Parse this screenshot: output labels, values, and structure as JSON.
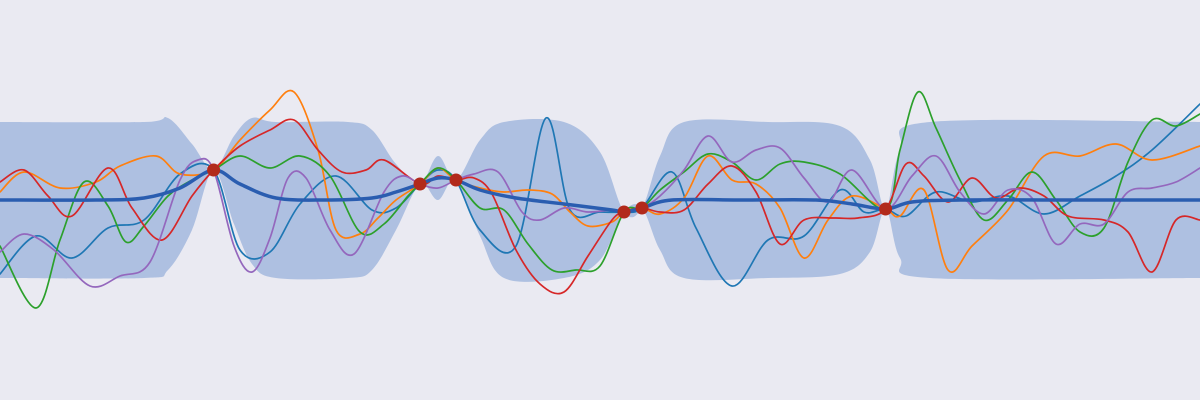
{
  "chart_data": {
    "type": "line",
    "title": "",
    "xlabel": "",
    "ylabel": "",
    "grid": false,
    "xlim": [
      0,
      100
    ],
    "ylim": [
      -10,
      10
    ],
    "background": "#eaeaf2",
    "band_color": "#aec0e1",
    "mean_color": "#2a5db0",
    "point_color": "#b22a1b",
    "observations": {
      "x": [
        17.8,
        35.0,
        38.0,
        52.0,
        53.5,
        73.8
      ],
      "y": [
        1.5,
        0.8,
        1.0,
        -0.6,
        -0.4,
        -0.45
      ]
    },
    "mean": {
      "x": [
        0,
        8,
        12,
        15,
        17.8,
        20,
        23,
        27,
        31,
        33,
        35,
        36.5,
        38,
        40,
        43,
        47,
        51,
        52,
        53.5,
        56,
        62,
        68,
        71,
        73.8,
        76,
        80,
        88,
        100
      ],
      "y": [
        0.0,
        0.0,
        0.1,
        0.6,
        1.5,
        0.8,
        0.1,
        0.0,
        0.1,
        0.4,
        0.8,
        1.1,
        1.0,
        0.5,
        0.1,
        -0.2,
        -0.5,
        -0.6,
        -0.4,
        0.0,
        0.0,
        0.0,
        -0.2,
        -0.45,
        -0.1,
        0.0,
        0.0,
        0.0
      ]
    },
    "confidence_band": {
      "x": [
        0,
        12,
        14,
        16,
        17.8,
        19.5,
        21,
        23,
        29,
        31,
        33,
        35,
        36.5,
        38,
        40,
        42,
        47,
        50,
        52,
        53.5,
        55,
        57,
        64,
        70,
        72.5,
        73.8,
        75,
        77.5,
        100
      ],
      "upper": [
        3.9,
        3.9,
        4.1,
        2.8,
        1.5,
        3.2,
        4.1,
        3.9,
        3.9,
        3.5,
        1.8,
        0.8,
        2.2,
        1.0,
        3.0,
        3.9,
        3.9,
        2.4,
        -0.6,
        -0.4,
        2.2,
        3.9,
        3.9,
        3.7,
        2.0,
        -0.45,
        2.5,
        3.9,
        3.9
      ],
      "lower": [
        -3.9,
        -3.9,
        -3.5,
        -1.5,
        1.5,
        -1.2,
        -3.2,
        -3.9,
        -3.9,
        -3.5,
        -1.5,
        0.8,
        0.0,
        1.0,
        -1.8,
        -3.9,
        -3.9,
        -3.0,
        -0.6,
        -0.4,
        -2.5,
        -3.9,
        -3.9,
        -3.7,
        -2.6,
        -0.45,
        -2.9,
        -3.9,
        -3.9
      ]
    },
    "series": [
      {
        "color": "#1f77b4",
        "x": [
          0,
          3,
          6,
          9,
          12,
          15,
          17.8,
          20,
          22.5,
          25,
          28,
          31,
          33,
          35,
          36.5,
          38,
          40,
          43,
          45.5,
          47.5,
          50,
          52,
          53.5,
          56,
          58,
          61,
          64,
          67,
          70,
          72,
          73.8,
          75.5,
          78,
          81,
          84,
          87,
          90,
          93,
          96,
          100
        ],
        "y": [
          -3.7,
          -1.8,
          -2.9,
          -1.4,
          -1.0,
          1.3,
          1.5,
          -2.5,
          -2.6,
          -0.2,
          1.2,
          -0.5,
          -0.4,
          0.8,
          1.5,
          1.0,
          -1.5,
          -2.3,
          4.1,
          -0.5,
          -0.6,
          -0.6,
          -0.4,
          1.4,
          -1.4,
          -4.3,
          -2.0,
          -1.8,
          0.5,
          -0.6,
          -0.45,
          -0.8,
          0.4,
          -0.1,
          0.2,
          -0.7,
          0.2,
          1.2,
          2.5,
          4.8
        ]
      },
      {
        "color": "#ff7f0e",
        "x": [
          0,
          2,
          5,
          8,
          10,
          13,
          15,
          17.8,
          20,
          22.5,
          24.5,
          26.5,
          28,
          30,
          31.5,
          33,
          35,
          36.5,
          38,
          40,
          42,
          44,
          46,
          47.5,
          49,
          51,
          52,
          53.5,
          55,
          57,
          59,
          61,
          63,
          65,
          67,
          69,
          71,
          73.8,
          75,
          77,
          79,
          81,
          84,
          87,
          90,
          93,
          96,
          100
        ],
        "y": [
          0.4,
          1.4,
          0.6,
          0.9,
          1.7,
          2.2,
          1.3,
          1.5,
          3.0,
          4.5,
          5.4,
          2.5,
          -1.5,
          -1.7,
          -0.9,
          0.0,
          0.8,
          1.6,
          1.0,
          0.6,
          0.4,
          0.5,
          0.3,
          -0.6,
          -1.3,
          -1.1,
          -0.6,
          -0.4,
          -0.7,
          0.1,
          2.2,
          1.0,
          0.8,
          -0.4,
          -2.9,
          -1.0,
          0.2,
          -0.45,
          -0.8,
          0.5,
          -3.5,
          -2.3,
          -0.5,
          2.2,
          2.2,
          2.8,
          2.0,
          2.7
        ]
      },
      {
        "color": "#2ca02c",
        "x": [
          0,
          3,
          5,
          7,
          9,
          10.5,
          12,
          14,
          16,
          17.8,
          20,
          22.5,
          25,
          27.5,
          30,
          32,
          34,
          35,
          36.5,
          38,
          40,
          42,
          44,
          46,
          48,
          50,
          52,
          53.5,
          55,
          57,
          59,
          61,
          63,
          65,
          67,
          70,
          73.8,
          75,
          76.5,
          78,
          80,
          82,
          84,
          86,
          88,
          90,
          92,
          94,
          96,
          98,
          100
        ],
        "y": [
          -2.3,
          -5.4,
          -2.0,
          0.9,
          -0.3,
          -2.1,
          -1.3,
          0.2,
          1.0,
          1.5,
          2.2,
          1.6,
          2.2,
          1.2,
          -1.6,
          -1.2,
          0.2,
          0.8,
          1.6,
          1.0,
          -0.4,
          -0.5,
          -2.2,
          -3.5,
          -3.5,
          -3.3,
          -0.6,
          -0.4,
          0.5,
          1.4,
          2.3,
          1.9,
          1.0,
          1.8,
          1.9,
          1.3,
          -0.45,
          2.5,
          5.4,
          3.6,
          1.0,
          -1.0,
          0.0,
          1.4,
          0.0,
          -1.6,
          -1.4,
          1.9,
          4.0,
          3.7,
          4.3
        ]
      },
      {
        "color": "#d62728",
        "x": [
          0,
          2,
          4,
          6,
          9,
          11,
          13.5,
          16,
          17.8,
          20,
          22.5,
          24.5,
          26.5,
          28.5,
          30.5,
          32,
          35,
          36.5,
          38,
          39.5,
          41,
          43,
          45,
          47,
          49,
          51,
          52,
          53.5,
          55,
          57,
          59,
          61,
          63,
          65,
          67,
          69.5,
          71.5,
          73.8,
          75.5,
          77,
          79,
          81,
          83,
          85,
          87,
          89,
          92,
          94,
          96,
          98,
          100
        ],
        "y": [
          0.9,
          1.5,
          0.2,
          -0.8,
          1.6,
          -0.4,
          -2.0,
          0.2,
          1.5,
          2.7,
          3.5,
          4.0,
          2.5,
          1.4,
          1.5,
          2.0,
          0.8,
          1.2,
          1.0,
          1.1,
          0.3,
          -2.5,
          -4.2,
          -4.6,
          -2.8,
          -1.0,
          -0.6,
          -0.4,
          -0.6,
          -0.5,
          0.8,
          1.7,
          0.4,
          -2.2,
          -1.0,
          -0.9,
          -0.9,
          -0.45,
          1.8,
          1.2,
          -0.1,
          1.1,
          0.1,
          0.6,
          0.2,
          -0.8,
          -1.0,
          -1.6,
          -3.6,
          -1.0,
          -1.0
        ]
      },
      {
        "color": "#9467bd",
        "x": [
          0,
          2,
          4.5,
          7.5,
          10,
          12.5,
          15,
          16.5,
          17.8,
          19.5,
          21,
          22.5,
          24,
          25.5,
          27.5,
          29.5,
          32,
          33.5,
          35,
          36.5,
          38,
          39.5,
          41.5,
          43.5,
          45,
          47,
          49,
          51,
          52,
          53.5,
          55,
          57,
          59,
          61,
          63,
          65,
          67,
          69,
          71,
          73.8,
          76,
          78,
          80,
          82,
          84,
          86,
          88,
          90,
          92,
          94,
          96,
          98,
          100
        ],
        "y": [
          -2.6,
          -1.7,
          -2.5,
          -4.3,
          -3.8,
          -3.1,
          1.0,
          2.0,
          1.5,
          -2.3,
          -3.6,
          -1.9,
          1.1,
          1.1,
          -1.5,
          -2.7,
          0.4,
          1.2,
          0.8,
          0.6,
          1.0,
          1.3,
          1.4,
          -0.6,
          -1.0,
          -0.4,
          -0.6,
          -0.5,
          -0.6,
          -0.4,
          0.2,
          1.5,
          3.2,
          1.9,
          2.5,
          2.6,
          1.1,
          -0.1,
          1.5,
          -0.45,
          1.2,
          2.2,
          0.4,
          -0.7,
          0.5,
          0.1,
          -2.2,
          -1.2,
          -1.2,
          0.4,
          0.6,
          0.9,
          1.6
        ]
      }
    ]
  }
}
